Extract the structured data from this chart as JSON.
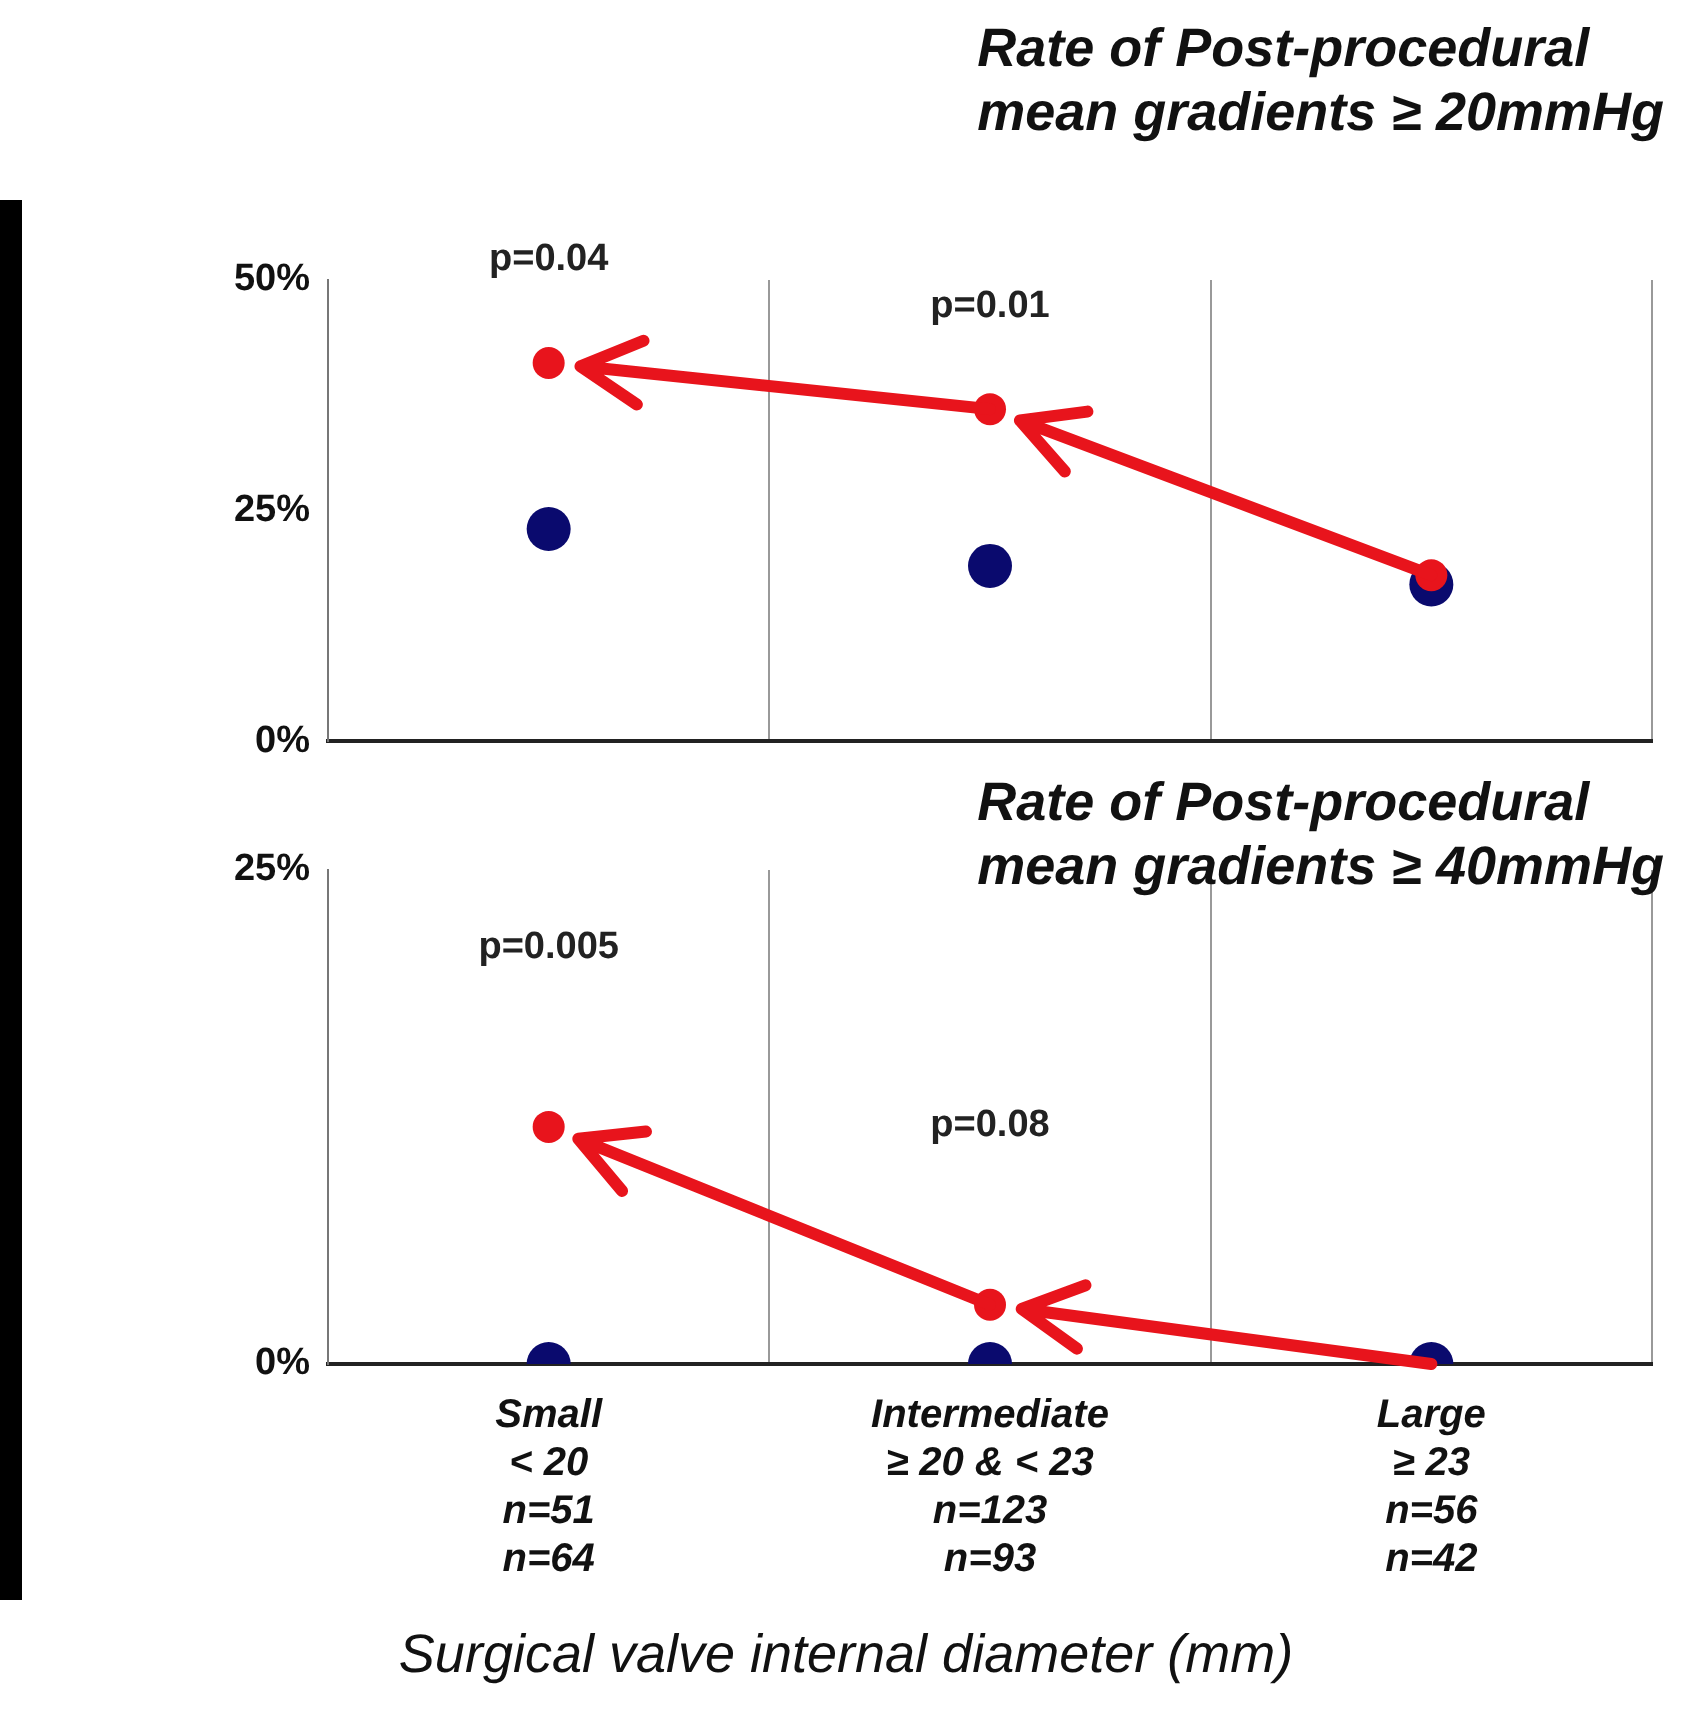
{
  "chart_data": [
    {
      "type": "scatter",
      "title": "Rate of Post-procedural\nmean gradients ≥ 20mmHg",
      "categories": [
        null,
        null,
        null
      ],
      "series": [
        {
          "color": "#e8141c",
          "values": [
            41,
            36,
            18
          ]
        },
        {
          "color": "#0a0a6e",
          "values": [
            23,
            19,
            17
          ]
        }
      ],
      "ylim": [
        0,
        50
      ],
      "yticks": [
        {
          "value": 0,
          "label": "0%"
        },
        {
          "value": 25,
          "label": "25%"
        },
        {
          "value": 50,
          "label": "50%"
        }
      ],
      "annotations": [
        "p=0.04",
        "p=0.01"
      ],
      "grid": "x",
      "legend": false,
      "marker": "circle",
      "tick_labels": "y"
    },
    {
      "type": "scatter",
      "title": "Rate of Post-procedural\nmean gradients ≥ 40mmHg",
      "xlabel": "Surgical valve internal diameter (mm)",
      "categories": [
        "Small\n< 20\nn=51\nn=64",
        "Intermediate\n≥ 20 & < 23\nn=123\nn=93",
        "Large\n≥ 23\nn=56\nn=42"
      ],
      "series": [
        {
          "color": "#e8141c",
          "values": [
            12,
            3,
            null
          ]
        },
        {
          "color": "#0a0a6e",
          "values": [
            0,
            0,
            0
          ]
        }
      ],
      "ylim": [
        0,
        25
      ],
      "yticks": [
        {
          "value": 0,
          "label": "0%"
        },
        {
          "value": 25,
          "label": "25%"
        }
      ],
      "annotations": [
        "p=0.005",
        "p=0.08"
      ],
      "grid": "x",
      "legend": false,
      "marker": "circle"
    }
  ]
}
